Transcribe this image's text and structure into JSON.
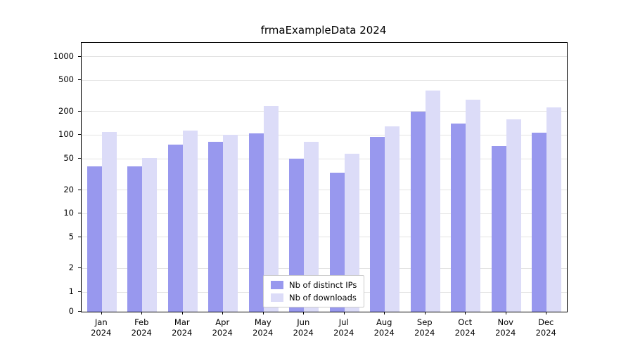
{
  "title": "frmaExampleData 2024",
  "chart_data": {
    "type": "bar",
    "title": "frmaExampleData 2024",
    "xlabel": "",
    "ylabel": "",
    "categories": [
      "Jan",
      "Feb",
      "Mar",
      "Apr",
      "May",
      "Jun",
      "Jul",
      "Aug",
      "Sep",
      "Oct",
      "Nov",
      "Dec"
    ],
    "year_label": "2024",
    "series": [
      {
        "name": "Nb of distinct IPs",
        "color": "#9898ee",
        "values": [
          40,
          40,
          75,
          82,
          105,
          50,
          33,
          95,
          200,
          140,
          72,
          107
        ]
      },
      {
        "name": "Nb of downloads",
        "color": "#dcdcf8",
        "values": [
          110,
          51,
          115,
          102,
          235,
          82,
          58,
          130,
          370,
          280,
          160,
          225
        ]
      }
    ],
    "yticks": [
      0,
      1,
      2,
      5,
      10,
      20,
      50,
      100,
      200,
      500,
      1000
    ],
    "ylim": [
      0,
      1500
    ],
    "scale": "log-with-zero-baseline",
    "grid": "horizontal",
    "legend_position": "bottom-center"
  }
}
